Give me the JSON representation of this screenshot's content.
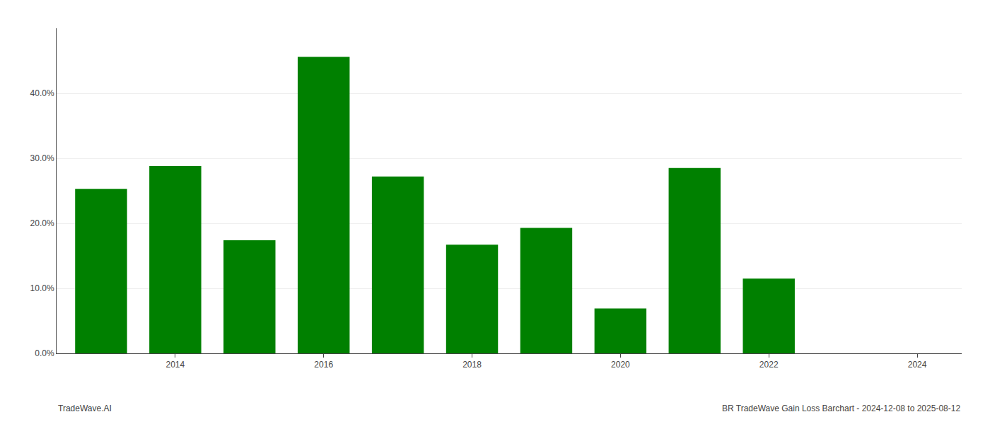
{
  "chart_data": {
    "type": "bar",
    "x": [
      2013,
      2014,
      2015,
      2016,
      2017,
      2018,
      2019,
      2020,
      2021,
      2022,
      2023
    ],
    "values": [
      0.253,
      0.288,
      0.174,
      0.456,
      0.272,
      0.167,
      0.193,
      0.069,
      0.285,
      0.115,
      0.0
    ],
    "color": "#008000",
    "xlim": [
      2012.4,
      2024.6
    ],
    "xticks": [
      2014,
      2016,
      2018,
      2020,
      2022,
      2024
    ],
    "ylim": [
      0,
      0.5
    ],
    "yticks": [
      {
        "value": 0.0,
        "label": "0.0%"
      },
      {
        "value": 0.1,
        "label": "10.0%"
      },
      {
        "value": 0.2,
        "label": "20.0%"
      },
      {
        "value": 0.3,
        "label": "30.0%"
      },
      {
        "value": 0.4,
        "label": "40.0%"
      }
    ],
    "grid": true,
    "annotations": [
      "TradeWave.AI",
      "BR TradeWave Gain Loss Barchart - 2024-12-08 to 2025-08-12"
    ]
  }
}
